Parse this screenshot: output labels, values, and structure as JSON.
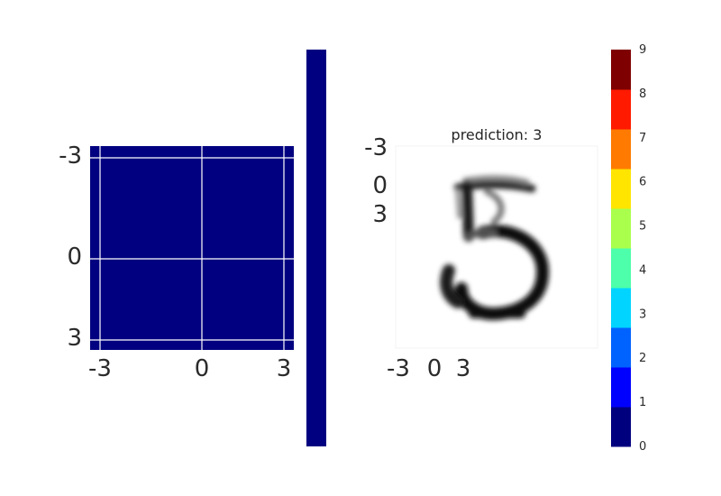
{
  "chart_data": [
    {
      "type": "heatmap",
      "title": "",
      "xlabel": "",
      "ylabel": "",
      "x_ticks": [
        "-3",
        "0",
        "3"
      ],
      "y_ticks": [
        "-3",
        "0",
        "3"
      ],
      "xlim": [
        -3,
        3
      ],
      "ylim": [
        -3,
        3
      ],
      "grid": true,
      "fill_color": "#000080",
      "colorbar_color": "#000080"
    },
    {
      "type": "heatmap",
      "title": "prediction: 3",
      "x_ticks": [
        "-3",
        "0",
        "3"
      ],
      "y_ticks": [
        "-3",
        "0",
        "3"
      ],
      "image": "handwritten digit, grayscale",
      "colorbar": {
        "ticks": [
          "0",
          "1",
          "2",
          "3",
          "4",
          "5",
          "6",
          "7",
          "8",
          "9"
        ],
        "colors": [
          "#00007f",
          "#0000ff",
          "#0063ff",
          "#00d4ff",
          "#4dffaa",
          "#aaff4d",
          "#ffe500",
          "#ff7a00",
          "#ff1a00",
          "#7f0000"
        ]
      }
    }
  ]
}
